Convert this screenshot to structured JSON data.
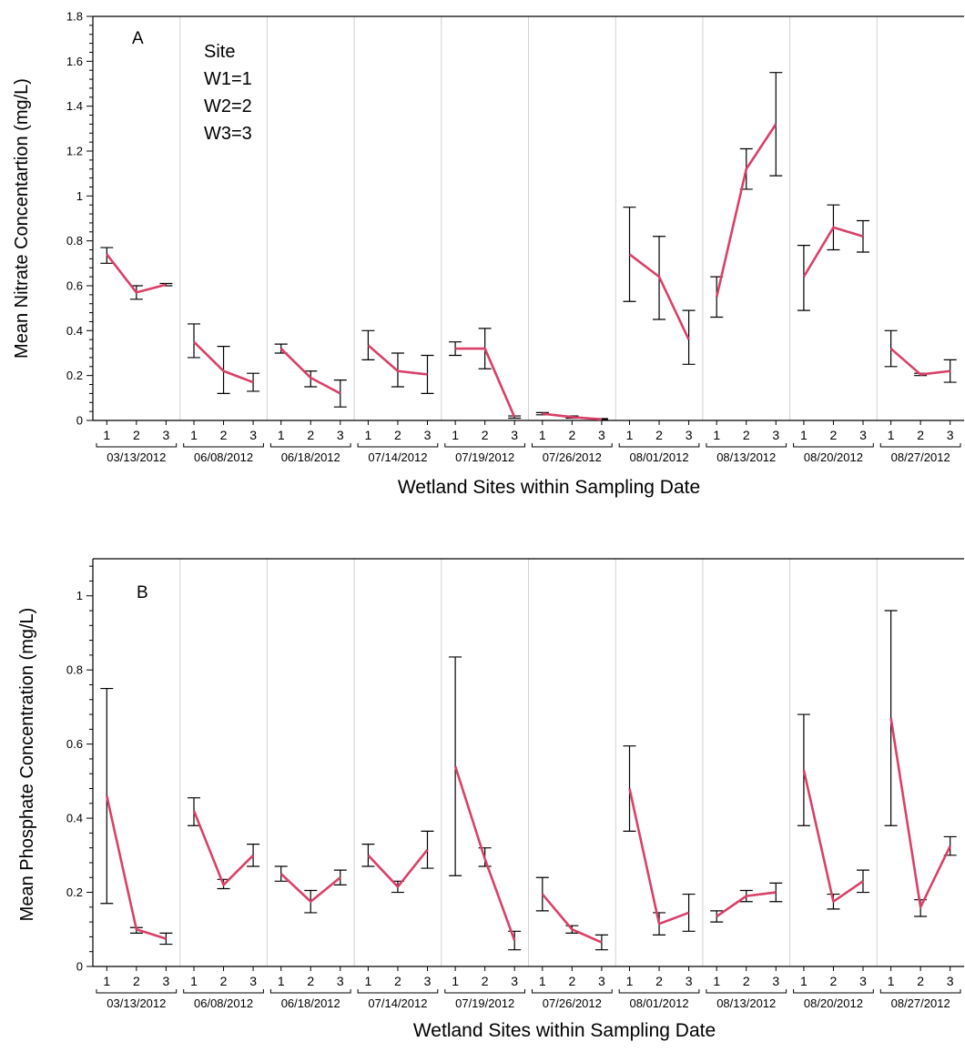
{
  "chart_data": [
    {
      "type": "line",
      "panel_label": "A",
      "ylabel": "Mean Nitrate Concentartion (mg/L)",
      "xlabel": "Wetland Sites within Sampling Date",
      "ylim": [
        0,
        1.8
      ],
      "yticks": [
        "0",
        "0.2",
        "0.4",
        "0.6",
        "0.8",
        "1",
        "1.2",
        "1.4",
        "1.6",
        "1.8"
      ],
      "grid": true,
      "legend": {
        "title": "Site",
        "entries": [
          "W1=1",
          "W2=2",
          "W3=3"
        ],
        "placement": "top-left"
      },
      "sites": [
        "1",
        "2",
        "3"
      ],
      "groups": [
        {
          "date": "03/13/2012",
          "means": [
            0.74,
            0.57,
            0.605
          ],
          "lower": [
            0.7,
            0.54,
            0.6
          ],
          "upper": [
            0.77,
            0.6,
            0.61
          ]
        },
        {
          "date": "06/08/2012",
          "means": [
            0.35,
            0.22,
            0.17
          ],
          "lower": [
            0.28,
            0.12,
            0.13
          ],
          "upper": [
            0.43,
            0.33,
            0.21
          ]
        },
        {
          "date": "06/18/2012",
          "means": [
            0.32,
            0.19,
            0.12
          ],
          "lower": [
            0.3,
            0.15,
            0.06
          ],
          "upper": [
            0.34,
            0.22,
            0.18
          ]
        },
        {
          "date": "07/14/2012",
          "means": [
            0.335,
            0.22,
            0.205
          ],
          "lower": [
            0.27,
            0.15,
            0.12
          ],
          "upper": [
            0.4,
            0.3,
            0.29
          ]
        },
        {
          "date": "07/19/2012",
          "means": [
            0.32,
            0.32,
            0.015
          ],
          "lower": [
            0.29,
            0.23,
            0.01
          ],
          "upper": [
            0.35,
            0.41,
            0.02
          ]
        },
        {
          "date": "07/26/2012",
          "means": [
            0.03,
            0.015,
            0.005
          ],
          "lower": [
            0.025,
            0.01,
            0.003
          ],
          "upper": [
            0.035,
            0.02,
            0.008
          ]
        },
        {
          "date": "08/01/2012",
          "means": [
            0.74,
            0.64,
            0.36
          ],
          "lower": [
            0.53,
            0.45,
            0.25
          ],
          "upper": [
            0.95,
            0.82,
            0.49
          ]
        },
        {
          "date": "08/13/2012",
          "means": [
            0.55,
            1.12,
            1.32
          ],
          "lower": [
            0.46,
            1.03,
            1.09
          ],
          "upper": [
            0.64,
            1.21,
            1.55
          ]
        },
        {
          "date": "08/20/2012",
          "means": [
            0.64,
            0.86,
            0.82
          ],
          "lower": [
            0.49,
            0.76,
            0.75
          ],
          "upper": [
            0.78,
            0.96,
            0.89
          ]
        },
        {
          "date": "08/27/2012",
          "means": [
            0.32,
            0.205,
            0.22
          ],
          "lower": [
            0.24,
            0.2,
            0.17
          ],
          "upper": [
            0.4,
            0.21,
            0.27
          ]
        }
      ]
    },
    {
      "type": "line",
      "panel_label": "B",
      "ylabel": "Mean Phosphate Concentration (mg/L)",
      "xlabel": "Wetland Sites within Sampling Date",
      "ylim": [
        0,
        1.1
      ],
      "yticks": [
        "0",
        "0.2",
        "0.4",
        "0.6",
        "0.8",
        "1"
      ],
      "grid": true,
      "sites": [
        "1",
        "2",
        "3"
      ],
      "groups": [
        {
          "date": "03/13/2012",
          "means": [
            0.46,
            0.1,
            0.075
          ],
          "lower": [
            0.17,
            0.09,
            0.06
          ],
          "upper": [
            0.75,
            0.105,
            0.09
          ]
        },
        {
          "date": "06/08/2012",
          "means": [
            0.42,
            0.22,
            0.3
          ],
          "lower": [
            0.38,
            0.21,
            0.27
          ],
          "upper": [
            0.455,
            0.235,
            0.33
          ]
        },
        {
          "date": "06/18/2012",
          "means": [
            0.25,
            0.175,
            0.24
          ],
          "lower": [
            0.23,
            0.145,
            0.22
          ],
          "upper": [
            0.27,
            0.205,
            0.26
          ]
        },
        {
          "date": "07/14/2012",
          "means": [
            0.3,
            0.215,
            0.315
          ],
          "lower": [
            0.27,
            0.2,
            0.265
          ],
          "upper": [
            0.33,
            0.23,
            0.365
          ]
        },
        {
          "date": "07/19/2012",
          "means": [
            0.54,
            0.29,
            0.07
          ],
          "lower": [
            0.245,
            0.27,
            0.045
          ],
          "upper": [
            0.835,
            0.32,
            0.095
          ]
        },
        {
          "date": "07/26/2012",
          "means": [
            0.195,
            0.1,
            0.065
          ],
          "lower": [
            0.15,
            0.09,
            0.045
          ],
          "upper": [
            0.24,
            0.11,
            0.085
          ]
        },
        {
          "date": "08/01/2012",
          "means": [
            0.48,
            0.115,
            0.145
          ],
          "lower": [
            0.365,
            0.085,
            0.095
          ],
          "upper": [
            0.595,
            0.145,
            0.195
          ]
        },
        {
          "date": "08/13/2012",
          "means": [
            0.135,
            0.19,
            0.2
          ],
          "lower": [
            0.12,
            0.175,
            0.175
          ],
          "upper": [
            0.15,
            0.205,
            0.225
          ]
        },
        {
          "date": "08/20/2012",
          "means": [
            0.53,
            0.175,
            0.23
          ],
          "lower": [
            0.38,
            0.155,
            0.2
          ],
          "upper": [
            0.68,
            0.195,
            0.26
          ]
        },
        {
          "date": "08/27/2012",
          "means": [
            0.67,
            0.16,
            0.325
          ],
          "lower": [
            0.38,
            0.135,
            0.3
          ],
          "upper": [
            0.96,
            0.18,
            0.35
          ]
        }
      ]
    }
  ],
  "colors": {
    "series": "#d94068",
    "grid": "#d2d2d2",
    "axis": "#000000"
  }
}
